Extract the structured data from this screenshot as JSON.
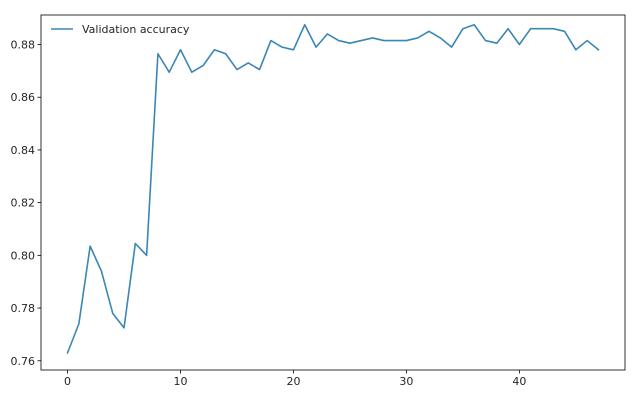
{
  "chart_data": {
    "type": "line",
    "title": "",
    "xlabel": "",
    "ylabel": "",
    "xlim": [
      -2.35,
      49.35
    ],
    "ylim": [
      0.7565,
      0.8912
    ],
    "xticks": [
      0,
      10,
      20,
      30,
      40
    ],
    "yticks": [
      0.76,
      0.78,
      0.8,
      0.82,
      0.84,
      0.86,
      0.88
    ],
    "xtick_labels": [
      "0",
      "10",
      "20",
      "30",
      "40"
    ],
    "ytick_labels": [
      "0.76",
      "0.78",
      "0.80",
      "0.82",
      "0.84",
      "0.86",
      "0.88"
    ],
    "grid": false,
    "legend": "top-left",
    "series": [
      {
        "name": "Validation accuracy",
        "color": "#3a86b4",
        "x": [
          0,
          1,
          2,
          3,
          4,
          5,
          6,
          7,
          8,
          9,
          10,
          11,
          12,
          13,
          14,
          15,
          16,
          17,
          18,
          19,
          20,
          21,
          22,
          23,
          24,
          25,
          26,
          27,
          28,
          29,
          30,
          31,
          32,
          33,
          34,
          35,
          36,
          37,
          38,
          39,
          40,
          41,
          42,
          43,
          44,
          45,
          46,
          47
        ],
        "y": [
          0.763,
          0.774,
          0.8035,
          0.794,
          0.778,
          0.7725,
          0.8045,
          0.8,
          0.8765,
          0.8695,
          0.878,
          0.8695,
          0.872,
          0.878,
          0.8765,
          0.8705,
          0.873,
          0.8705,
          0.8815,
          0.879,
          0.878,
          0.8875,
          0.879,
          0.884,
          0.8815,
          0.8805,
          0.8815,
          0.8825,
          0.8815,
          0.8815,
          0.8815,
          0.8825,
          0.885,
          0.8825,
          0.879,
          0.886,
          0.8875,
          0.8815,
          0.8805,
          0.886,
          0.88,
          0.886,
          0.886,
          0.886,
          0.885,
          0.878,
          0.8815,
          0.878
        ]
      }
    ]
  }
}
